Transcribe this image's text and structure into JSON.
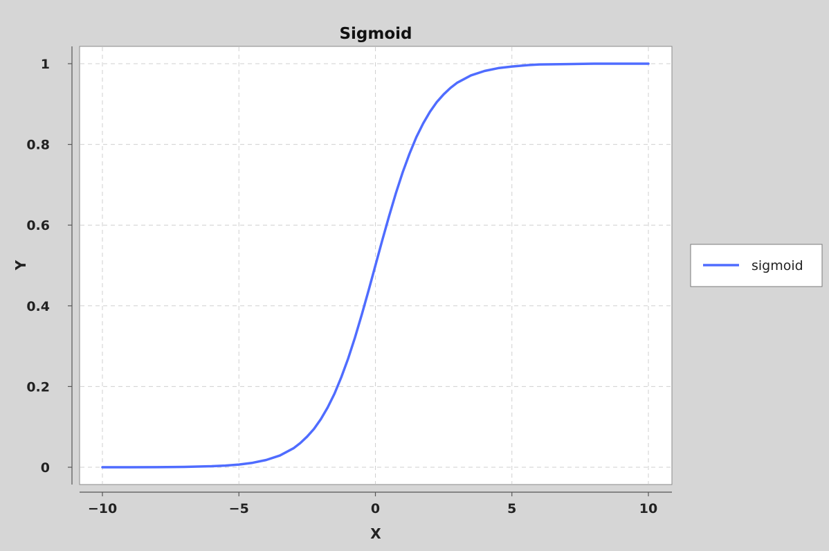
{
  "chart_data": {
    "type": "line",
    "title": "Sigmoid",
    "xlabel": "X",
    "ylabel": "Y",
    "xlim": [
      -10,
      10
    ],
    "ylim": [
      0,
      1
    ],
    "x_ticks": [
      -10,
      -5,
      0,
      5,
      10
    ],
    "x_tick_labels": [
      "−10",
      "−5",
      "0",
      "5",
      "10"
    ],
    "y_ticks": [
      0,
      0.2,
      0.4,
      0.6,
      0.8,
      1
    ],
    "y_tick_labels": [
      "0",
      "0.2",
      "0.4",
      "0.6",
      "0.8",
      "1"
    ],
    "grid": true,
    "legend": "right",
    "series": [
      {
        "name": "sigmoid",
        "color": "#4f6cff",
        "x": [
          -10,
          -9,
          -8,
          -7,
          -6,
          -5.5,
          -5,
          -4.5,
          -4,
          -3.5,
          -3,
          -2.75,
          -2.5,
          -2.25,
          -2,
          -1.75,
          -1.5,
          -1.25,
          -1,
          -0.75,
          -0.5,
          -0.25,
          0,
          0.25,
          0.5,
          0.75,
          1,
          1.25,
          1.5,
          1.75,
          2,
          2.25,
          2.5,
          2.75,
          3,
          3.5,
          4,
          4.5,
          5,
          5.5,
          6,
          7,
          8,
          9,
          10
        ],
        "y": [
          0,
          0.0001,
          0.0003,
          0.0009,
          0.0025,
          0.0041,
          0.0067,
          0.011,
          0.018,
          0.029,
          0.047,
          0.06,
          0.076,
          0.095,
          0.119,
          0.148,
          0.182,
          0.223,
          0.269,
          0.321,
          0.378,
          0.438,
          0.5,
          0.562,
          0.622,
          0.679,
          0.731,
          0.777,
          0.818,
          0.852,
          0.881,
          0.905,
          0.924,
          0.94,
          0.953,
          0.971,
          0.982,
          0.989,
          0.993,
          0.996,
          0.998,
          0.999,
          1,
          1,
          1
        ]
      }
    ]
  }
}
